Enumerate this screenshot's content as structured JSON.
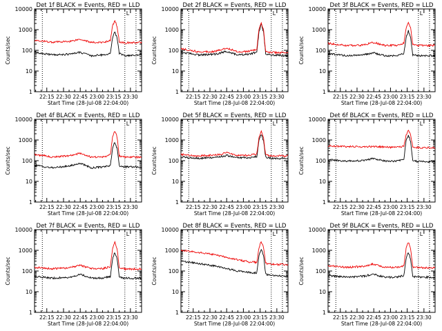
{
  "colors": {
    "events": "#000000",
    "lld": "#ee0000",
    "axes": "#000000",
    "markers": "#000000"
  },
  "common": {
    "ylabel": "Counts/sec",
    "xlabel": "Start Time (28-Jul-08 22:04:00)",
    "ytick_labels": [
      "1",
      "10",
      "100",
      "1000",
      "10000"
    ],
    "xtick_labels": [
      "22:15",
      "22:30",
      "22:45",
      "23:00",
      "23:15",
      "23:30"
    ],
    "corner_mark": "L"
  },
  "chart_data": [
    {
      "type": "line",
      "title": "Det 1f BLACK = Events, RED = LLD",
      "yscale": "log",
      "ylim": [
        1,
        10000
      ],
      "xlim": [
        "22:04",
        "23:40"
      ],
      "vlines": [
        "22:11",
        "23:25",
        "23:35"
      ],
      "series": [
        {
          "name": "Events",
          "color": "#000000",
          "x": [
            "22:04",
            "22:20",
            "22:35",
            "22:45",
            "22:55",
            "23:05",
            "23:12",
            "23:14",
            "23:16",
            "23:18",
            "23:20",
            "23:25",
            "23:40"
          ],
          "y": [
            80,
            60,
            65,
            80,
            55,
            60,
            70,
            400,
            800,
            400,
            70,
            55,
            60
          ]
        },
        {
          "name": "LLD",
          "color": "#ee0000",
          "x": [
            "22:04",
            "22:20",
            "22:35",
            "22:45",
            "22:55",
            "23:05",
            "23:12",
            "23:14",
            "23:16",
            "23:18",
            "23:20",
            "23:25",
            "23:40"
          ],
          "y": [
            300,
            250,
            270,
            350,
            240,
            240,
            300,
            1500,
            2700,
            1500,
            260,
            230,
            240
          ]
        }
      ]
    },
    {
      "type": "line",
      "title": "Det 2f BLACK = Events, RED = LLD",
      "yscale": "log",
      "ylim": [
        1,
        10000
      ],
      "xlim": [
        "22:04",
        "23:40"
      ],
      "vlines": [
        "22:11",
        "23:25",
        "23:35"
      ],
      "series": [
        {
          "name": "Events",
          "color": "#000000",
          "x": [
            "22:04",
            "22:20",
            "22:35",
            "22:45",
            "22:55",
            "23:05",
            "23:12",
            "23:14",
            "23:16",
            "23:18",
            "23:20",
            "23:25",
            "23:40"
          ],
          "y": [
            80,
            60,
            65,
            90,
            60,
            65,
            80,
            800,
            1800,
            800,
            70,
            60,
            55
          ]
        },
        {
          "name": "LLD",
          "color": "#ee0000",
          "x": [
            "22:04",
            "22:20",
            "22:35",
            "22:45",
            "22:55",
            "23:05",
            "23:12",
            "23:14",
            "23:16",
            "23:18",
            "23:20",
            "23:25",
            "23:40"
          ],
          "y": [
            120,
            85,
            90,
            130,
            85,
            90,
            110,
            1000,
            2000,
            1000,
            90,
            80,
            75
          ]
        }
      ]
    },
    {
      "type": "line",
      "title": "Det 3f BLACK = Events, RED = LLD",
      "yscale": "log",
      "ylim": [
        1,
        10000
      ],
      "xlim": [
        "22:04",
        "23:40"
      ],
      "vlines": [
        "22:11",
        "23:25",
        "23:35"
      ],
      "series": [
        {
          "name": "Events",
          "color": "#000000",
          "x": [
            "22:04",
            "22:20",
            "22:35",
            "22:45",
            "22:55",
            "23:05",
            "23:12",
            "23:14",
            "23:16",
            "23:18",
            "23:20",
            "23:25",
            "23:40"
          ],
          "y": [
            70,
            55,
            60,
            75,
            55,
            55,
            70,
            400,
            900,
            400,
            60,
            55,
            55
          ]
        },
        {
          "name": "LLD",
          "color": "#ee0000",
          "x": [
            "22:04",
            "22:20",
            "22:35",
            "22:45",
            "22:55",
            "23:05",
            "23:12",
            "23:14",
            "23:16",
            "23:18",
            "23:20",
            "23:25",
            "23:40"
          ],
          "y": [
            220,
            170,
            180,
            240,
            170,
            175,
            220,
            1200,
            2200,
            1200,
            190,
            170,
            175
          ]
        }
      ]
    },
    {
      "type": "line",
      "title": "Det 4f BLACK = Events, RED = LLD",
      "yscale": "log",
      "ylim": [
        1,
        10000
      ],
      "xlim": [
        "22:04",
        "23:40"
      ],
      "vlines": [
        "22:11",
        "23:25",
        "23:35"
      ],
      "series": [
        {
          "name": "Events",
          "color": "#000000",
          "x": [
            "22:04",
            "22:20",
            "22:35",
            "22:45",
            "22:55",
            "23:05",
            "23:12",
            "23:14",
            "23:16",
            "23:18",
            "23:20",
            "23:25",
            "23:40"
          ],
          "y": [
            60,
            45,
            55,
            75,
            45,
            50,
            60,
            400,
            800,
            400,
            55,
            50,
            50
          ]
        },
        {
          "name": "LLD",
          "color": "#ee0000",
          "x": [
            "22:04",
            "22:20",
            "22:35",
            "22:45",
            "22:55",
            "23:05",
            "23:12",
            "23:14",
            "23:16",
            "23:18",
            "23:20",
            "23:25",
            "23:40"
          ],
          "y": [
            200,
            150,
            170,
            230,
            150,
            150,
            190,
            1400,
            2700,
            1400,
            170,
            150,
            150
          ]
        }
      ]
    },
    {
      "type": "line",
      "title": "Det 5f BLACK = Events, RED = LLD",
      "yscale": "log",
      "ylim": [
        1,
        10000
      ],
      "xlim": [
        "22:04",
        "23:40"
      ],
      "vlines": [
        "22:11",
        "23:25",
        "23:35"
      ],
      "series": [
        {
          "name": "Events",
          "color": "#000000",
          "x": [
            "22:04",
            "22:20",
            "22:35",
            "22:45",
            "22:55",
            "23:05",
            "23:12",
            "23:14",
            "23:16",
            "23:18",
            "23:20",
            "23:25",
            "23:40"
          ],
          "y": [
            150,
            130,
            140,
            180,
            140,
            140,
            160,
            900,
            1900,
            900,
            150,
            130,
            130
          ]
        },
        {
          "name": "LLD",
          "color": "#ee0000",
          "x": [
            "22:04",
            "22:20",
            "22:35",
            "22:45",
            "22:55",
            "23:05",
            "23:12",
            "23:14",
            "23:16",
            "23:18",
            "23:20",
            "23:25",
            "23:40"
          ],
          "y": [
            200,
            170,
            185,
            240,
            180,
            180,
            210,
            1300,
            2600,
            1300,
            190,
            170,
            170
          ]
        }
      ]
    },
    {
      "type": "line",
      "title": "Det 6f BLACK = Events, RED = LLD",
      "yscale": "log",
      "ylim": [
        1,
        10000
      ],
      "xlim": [
        "22:04",
        "23:40"
      ],
      "vlines": [
        "22:11",
        "23:25",
        "23:35"
      ],
      "series": [
        {
          "name": "Events",
          "color": "#000000",
          "x": [
            "22:04",
            "22:20",
            "22:35",
            "22:45",
            "22:55",
            "23:05",
            "23:12",
            "23:14",
            "23:16",
            "23:18",
            "23:20",
            "23:25",
            "23:40"
          ],
          "y": [
            110,
            95,
            100,
            130,
            95,
            95,
            110,
            900,
            1700,
            900,
            100,
            90,
            90
          ]
        },
        {
          "name": "LLD",
          "color": "#ee0000",
          "x": [
            "22:04",
            "22:20",
            "22:35",
            "22:45",
            "22:55",
            "23:05",
            "23:12",
            "23:14",
            "23:16",
            "23:18",
            "23:20",
            "23:25",
            "23:40"
          ],
          "y": [
            520,
            480,
            470,
            480,
            450,
            440,
            480,
            1800,
            2800,
            1800,
            470,
            430,
            420
          ]
        }
      ]
    },
    {
      "type": "line",
      "title": "Det 7f BLACK = Events, RED = LLD",
      "yscale": "log",
      "ylim": [
        1,
        10000
      ],
      "xlim": [
        "22:04",
        "23:40"
      ],
      "vlines": [
        "22:11",
        "23:25",
        "23:35"
      ],
      "series": [
        {
          "name": "Events",
          "color": "#000000",
          "x": [
            "22:04",
            "22:20",
            "22:35",
            "22:45",
            "22:55",
            "23:05",
            "23:12",
            "23:14",
            "23:16",
            "23:18",
            "23:20",
            "23:25",
            "23:40"
          ],
          "y": [
            55,
            45,
            50,
            70,
            45,
            45,
            55,
            400,
            800,
            400,
            50,
            45,
            45
          ]
        },
        {
          "name": "LLD",
          "color": "#ee0000",
          "x": [
            "22:04",
            "22:20",
            "22:35",
            "22:45",
            "22:55",
            "23:05",
            "23:12",
            "23:14",
            "23:16",
            "23:18",
            "23:20",
            "23:25",
            "23:40"
          ],
          "y": [
            150,
            130,
            140,
            190,
            130,
            130,
            160,
            1200,
            2500,
            1200,
            140,
            125,
            125
          ]
        }
      ]
    },
    {
      "type": "line",
      "title": "Det 8f BLACK = Events, RED = LLD",
      "yscale": "log",
      "ylim": [
        1,
        10000
      ],
      "xlim": [
        "22:04",
        "23:40"
      ],
      "vlines": [
        "22:11",
        "23:25",
        "23:35"
      ],
      "series": [
        {
          "name": "Events",
          "color": "#000000",
          "x": [
            "22:04",
            "22:20",
            "22:35",
            "22:45",
            "22:55",
            "23:05",
            "23:12",
            "23:14",
            "23:16",
            "23:18",
            "23:20",
            "23:25",
            "23:40"
          ],
          "y": [
            300,
            230,
            170,
            130,
            100,
            85,
            80,
            600,
            1200,
            600,
            70,
            60,
            55
          ]
        },
        {
          "name": "LLD",
          "color": "#ee0000",
          "x": [
            "22:04",
            "22:20",
            "22:35",
            "22:45",
            "22:55",
            "23:05",
            "23:12",
            "23:14",
            "23:16",
            "23:18",
            "23:20",
            "23:25",
            "23:40"
          ],
          "y": [
            1000,
            800,
            600,
            450,
            350,
            280,
            260,
            1400,
            2600,
            1400,
            240,
            210,
            200
          ]
        }
      ]
    },
    {
      "type": "line",
      "title": "Det 9f BLACK = Events, RED = LLD",
      "yscale": "log",
      "ylim": [
        1,
        10000
      ],
      "xlim": [
        "22:04",
        "23:40"
      ],
      "vlines": [
        "22:11",
        "23:25",
        "23:35"
      ],
      "series": [
        {
          "name": "Events",
          "color": "#000000",
          "x": [
            "22:04",
            "22:20",
            "22:35",
            "22:45",
            "22:55",
            "23:05",
            "23:12",
            "23:14",
            "23:16",
            "23:18",
            "23:20",
            "23:25",
            "23:40"
          ],
          "y": [
            60,
            50,
            55,
            70,
            50,
            50,
            60,
            400,
            800,
            400,
            55,
            50,
            50
          ]
        },
        {
          "name": "LLD",
          "color": "#ee0000",
          "x": [
            "22:04",
            "22:20",
            "22:35",
            "22:45",
            "22:55",
            "23:05",
            "23:12",
            "23:14",
            "23:16",
            "23:18",
            "23:20",
            "23:25",
            "23:40"
          ],
          "y": [
            180,
            150,
            165,
            220,
            150,
            150,
            180,
            1200,
            2500,
            1200,
            160,
            145,
            140
          ]
        }
      ]
    }
  ]
}
